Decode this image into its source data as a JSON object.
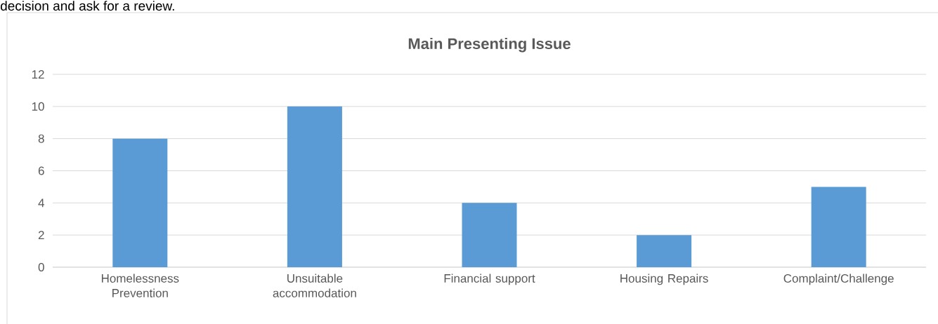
{
  "chart_data": {
    "type": "bar",
    "title": "Main Presenting Issue",
    "annotations": [
      "decision and ask for a review."
    ],
    "categories": [
      "Homelessness Prevention",
      "Unsuitable accommodation",
      "Financial support",
      "Housing Repairs",
      "Complaint/Challenge"
    ],
    "values": [
      8,
      10,
      4,
      2,
      5
    ],
    "color": "#5b9bd5",
    "ylim": [
      0,
      12
    ],
    "yticks": [
      0,
      2,
      4,
      6,
      8,
      10,
      12
    ],
    "grid": "y"
  }
}
